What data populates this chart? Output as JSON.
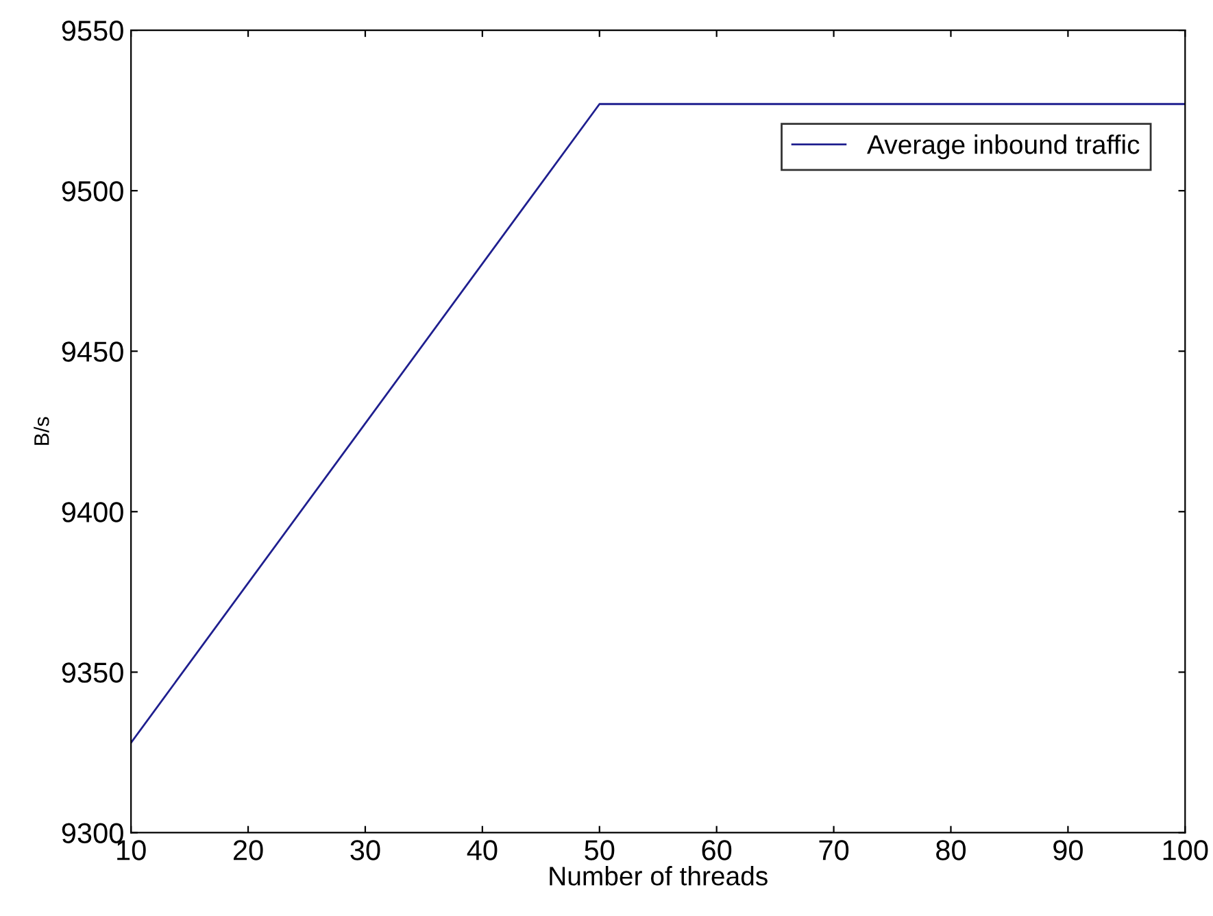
{
  "chart_data": {
    "type": "line",
    "xlabel": "Number of threads",
    "ylabel": "B/s",
    "x": [
      10,
      50,
      100
    ],
    "series": [
      {
        "name": "Average inbound traffic",
        "color": "#1f1f8f",
        "values": [
          9328,
          9527,
          9527
        ]
      }
    ],
    "xlim": [
      10,
      100
    ],
    "xticks": [
      10,
      20,
      30,
      40,
      50,
      60,
      70,
      80,
      90,
      100
    ],
    "ylim": [
      9300,
      9550
    ],
    "yticks": [
      9300,
      9350,
      9400,
      9450,
      9500,
      9550
    ],
    "grid": false,
    "legend": "top right",
    "marker": "none",
    "line_style": "solid"
  }
}
